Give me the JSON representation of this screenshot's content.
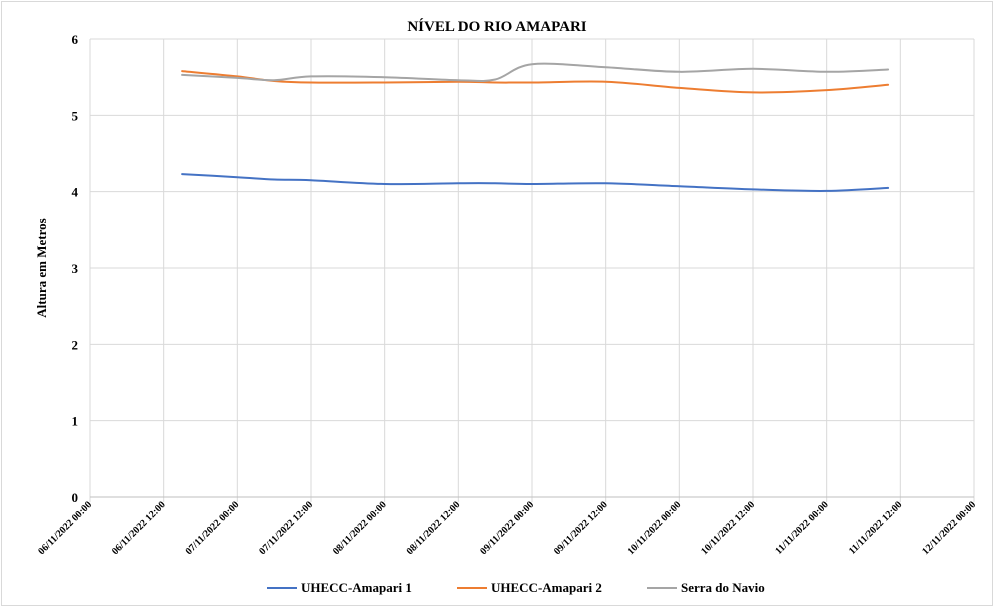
{
  "chart_data": {
    "type": "line",
    "title": "NÍVEL DO RIO AMAPARI",
    "ylabel": "Altura  em Metros",
    "xlabel": "",
    "ylim": [
      0,
      6
    ],
    "yticks": [
      0,
      1,
      2,
      3,
      4,
      5,
      6
    ],
    "grid": true,
    "legend_position": "bottom",
    "xlim": [
      "06/11/2022 00:00",
      "12/11/2022 00:00"
    ],
    "xticks": [
      "06/11/2022 00:00",
      "06/11/2022 12:00",
      "07/11/2022 00:00",
      "07/11/2022 12:00",
      "08/11/2022 00:00",
      "08/11/2022 12:00",
      "09/11/2022 00:00",
      "09/11/2022 12:00",
      "10/11/2022 00:00",
      "10/11/2022 12:00",
      "11/11/2022 00:00",
      "11/11/2022 12:00",
      "12/11/2022 00:00"
    ],
    "x": [
      "06/11/2022 15:00",
      "07/11/2022 00:00",
      "07/11/2022 06:00",
      "07/11/2022 12:00",
      "08/11/2022 00:00",
      "08/11/2022 12:00",
      "08/11/2022 18:00",
      "09/11/2022 00:00",
      "09/11/2022 12:00",
      "10/11/2022 00:00",
      "10/11/2022 12:00",
      "11/11/2022 00:00",
      "11/11/2022 10:00"
    ],
    "series": [
      {
        "name": "UHECC-Amapari 1",
        "color": "#4472c4",
        "values": [
          4.23,
          4.19,
          4.16,
          4.15,
          4.1,
          4.11,
          4.11,
          4.1,
          4.11,
          4.07,
          4.03,
          4.01,
          4.05
        ]
      },
      {
        "name": "UHECC-Amapari 2",
        "color": "#ed7d31",
        "values": [
          5.58,
          5.51,
          5.45,
          5.43,
          5.43,
          5.44,
          5.43,
          5.43,
          5.44,
          5.36,
          5.3,
          5.33,
          5.4
        ]
      },
      {
        "name": "Serra do Navio",
        "color": "#a5a5a5",
        "values": [
          5.53,
          5.49,
          5.46,
          5.51,
          5.5,
          5.46,
          5.47,
          5.67,
          5.63,
          5.57,
          5.61,
          5.57,
          5.6
        ]
      }
    ]
  }
}
